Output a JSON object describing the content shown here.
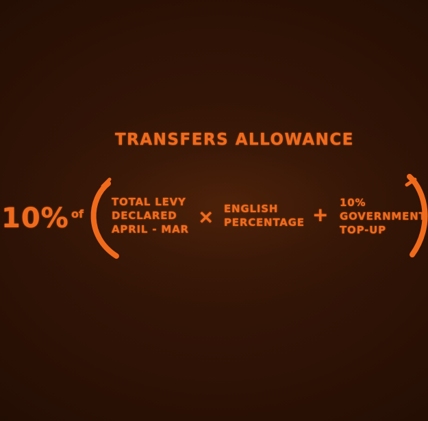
{
  "title": "TRANSFERS ALLOWANCE",
  "formula": {
    "percent": "10%",
    "of": "of",
    "levy_lines": [
      "TOTAL LEVY",
      "DECLARED",
      "APRIL - MAR"
    ],
    "times_symbol": "×",
    "english_lines": [
      "ENGLISH",
      "PERCENTAGE"
    ],
    "plus_symbol": "+",
    "topup_lines": [
      "10%",
      "GOVERNMENT",
      "TOP-UP"
    ]
  },
  "colors": {
    "chalk": "#f06a1c",
    "background": "#2d1205"
  }
}
